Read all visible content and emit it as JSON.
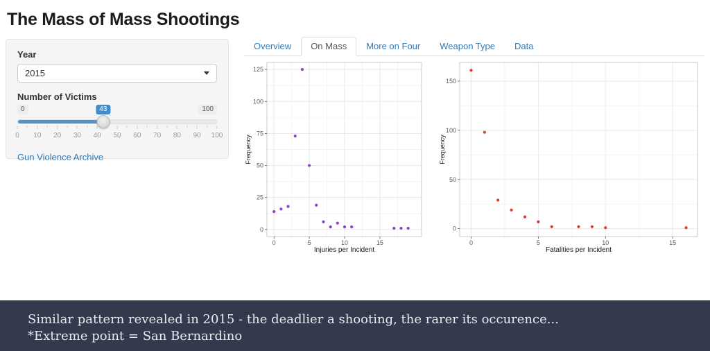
{
  "page": {
    "title": "The Mass of Mass Shootings"
  },
  "sidebar": {
    "year_label": "Year",
    "year_value": "2015",
    "victims_label": "Number of Victims",
    "slider": {
      "min_label": "0",
      "max_label": "100",
      "value_label": "43",
      "value_percent": 43,
      "tick_labels": [
        "0",
        "10",
        "20",
        "30",
        "40",
        "50",
        "60",
        "70",
        "80",
        "90",
        "100"
      ],
      "accent_color": "#5294cf",
      "badge_color": "#428bca"
    },
    "source_link": "Gun Violence Archive"
  },
  "tabs": [
    {
      "label": "Overview",
      "active": false
    },
    {
      "label": "On Mass",
      "active": true
    },
    {
      "label": "More on Four",
      "active": false
    },
    {
      "label": "Weapon Type",
      "active": false
    },
    {
      "label": "Data",
      "active": false
    }
  ],
  "chart_data": [
    {
      "type": "scatter",
      "title": "",
      "xlabel": "Injuries per Incident",
      "ylabel": "Frequency",
      "point_color": "#8b45c9",
      "x_ticks": [
        0,
        5,
        10,
        15
      ],
      "y_ticks": [
        0,
        25,
        50,
        75,
        100,
        125
      ],
      "xlim": [
        -1,
        20.9
      ],
      "ylim": [
        -5.5,
        130.5
      ],
      "grid": "on",
      "points": [
        [
          0,
          14
        ],
        [
          1,
          16
        ],
        [
          2,
          18
        ],
        [
          3,
          73
        ],
        [
          4,
          125
        ],
        [
          5,
          50
        ],
        [
          6,
          19
        ],
        [
          7,
          6
        ],
        [
          8,
          2
        ],
        [
          9,
          5
        ],
        [
          10,
          2
        ],
        [
          11,
          2
        ],
        [
          17,
          1
        ],
        [
          18,
          1
        ],
        [
          19,
          1
        ]
      ]
    },
    {
      "type": "scatter",
      "title": "",
      "xlabel": "Fatalities per Incident",
      "ylabel": "Frequency",
      "point_color": "#e23b2e",
      "x_ticks": [
        0,
        5,
        10,
        15
      ],
      "y_ticks": [
        0,
        50,
        100,
        150
      ],
      "xlim": [
        -0.85,
        16.85
      ],
      "ylim": [
        -8,
        169
      ],
      "grid": "on",
      "points": [
        [
          0,
          161
        ],
        [
          1,
          98
        ],
        [
          2,
          29
        ],
        [
          3,
          19
        ],
        [
          4,
          12
        ],
        [
          5,
          7
        ],
        [
          6,
          2
        ],
        [
          8,
          2
        ],
        [
          9,
          2
        ],
        [
          10,
          1
        ],
        [
          16,
          1
        ]
      ]
    }
  ],
  "footer": {
    "line1": "Similar pattern revealed in 2015 - the deadlier a shooting, the rarer its occurence...",
    "line2": "*Extreme point = San Bernardino",
    "bg_color": "#333a4d"
  }
}
